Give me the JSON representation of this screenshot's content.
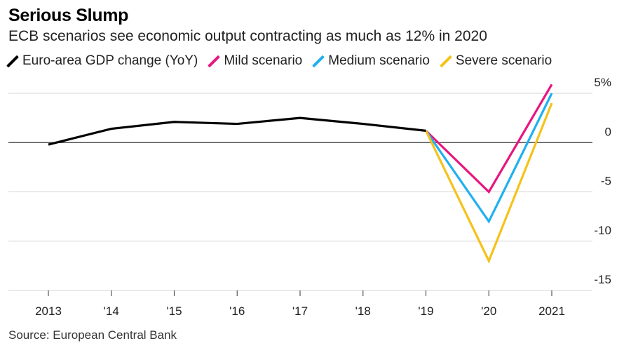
{
  "title": "Serious Slump",
  "subtitle": "ECB scenarios see economic output contracting as much as 12% in 2020",
  "source": "Source: European Central Bank",
  "legend": [
    {
      "label": "Euro-area GDP change (YoY)",
      "color": "#000000"
    },
    {
      "label": "Mild scenario",
      "color": "#e8167f"
    },
    {
      "label": "Medium scenario",
      "color": "#1fb0f0"
    },
    {
      "label": "Severe scenario",
      "color": "#f5c21b"
    }
  ],
  "chart_data": {
    "type": "line",
    "title": "Serious Slump",
    "xlabel": "",
    "ylabel": "",
    "x": [
      "2013",
      "'14",
      "'15",
      "'16",
      "'17",
      "'18",
      "'19",
      "'20",
      "2021"
    ],
    "ylim": [
      -15,
      5
    ],
    "yticks": [
      5,
      0,
      -5,
      -10,
      -15
    ],
    "ytick_labels": [
      "5%",
      "0",
      "-5",
      "-10",
      "-15"
    ],
    "series": [
      {
        "name": "Euro-area GDP change (YoY)",
        "color": "#000000",
        "values": [
          -0.2,
          1.4,
          2.1,
          1.9,
          2.5,
          1.9,
          1.2,
          null,
          null
        ]
      },
      {
        "name": "Mild scenario",
        "color": "#e8167f",
        "values": [
          null,
          null,
          null,
          null,
          null,
          null,
          1.2,
          -5.0,
          5.9
        ]
      },
      {
        "name": "Medium scenario",
        "color": "#1fb0f0",
        "values": [
          null,
          null,
          null,
          null,
          null,
          null,
          1.2,
          -8.0,
          5.0
        ]
      },
      {
        "name": "Severe scenario",
        "color": "#f5c21b",
        "values": [
          null,
          null,
          null,
          null,
          null,
          null,
          1.2,
          -12.0,
          4.0
        ]
      }
    ]
  }
}
